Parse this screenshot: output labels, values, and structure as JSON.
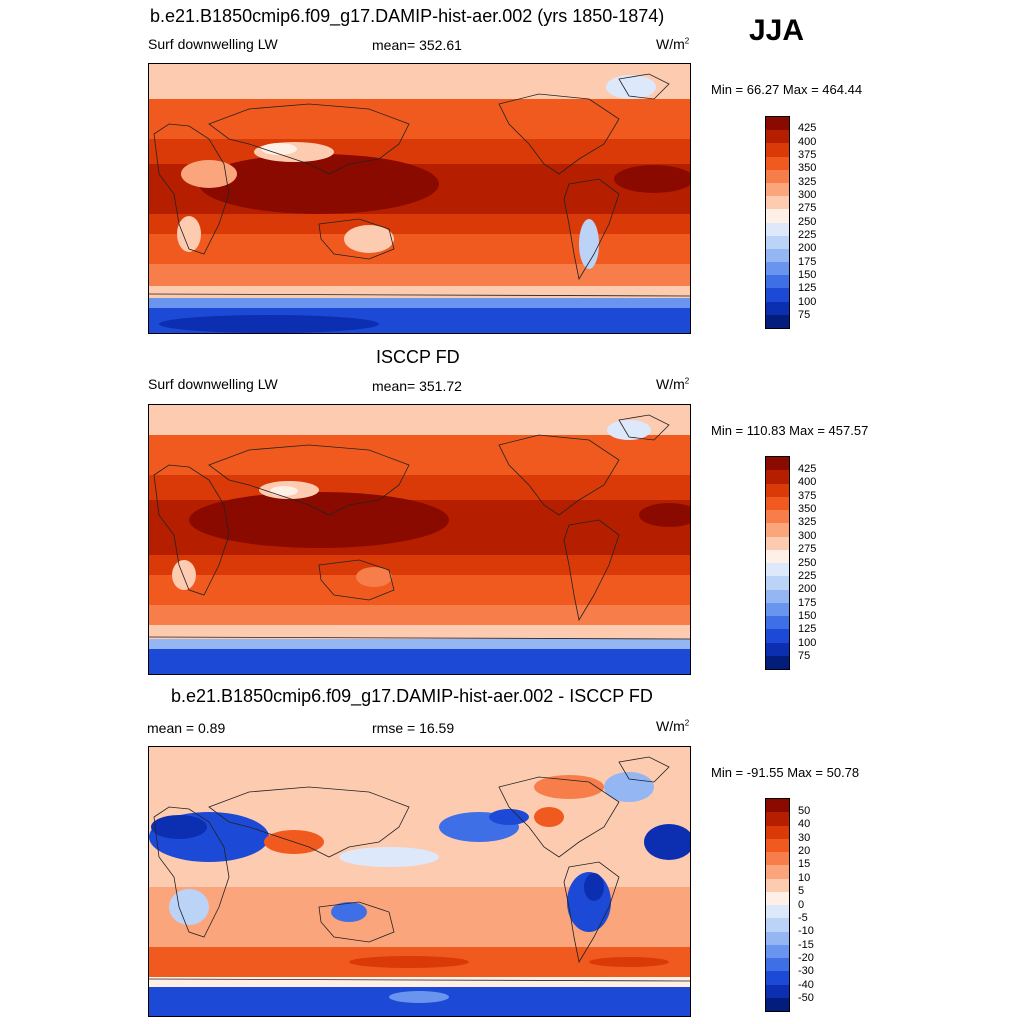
{
  "season": "JJA",
  "panels": [
    {
      "id": "model",
      "title": "b.e21.B1850cmip6.f09_g17.DAMIP-hist-aer.002 (yrs 1850-1874)",
      "left_label": "Surf downwelling LW",
      "center_label": "mean= 352.61",
      "units_base": "W/m",
      "units_exp": "2",
      "minmax": "Min =  66.27 Max = 464.44",
      "colorbar_labels": [
        "425",
        "400",
        "375",
        "350",
        "325",
        "300",
        "275",
        "250",
        "225",
        "200",
        "175",
        "150",
        "125",
        "100",
        "75"
      ]
    },
    {
      "id": "obs",
      "title": "ISCCP FD",
      "left_label": "Surf downwelling LW",
      "center_label": "mean= 351.72",
      "units_base": "W/m",
      "units_exp": "2",
      "minmax": "Min = 110.83 Max = 457.57",
      "colorbar_labels": [
        "425",
        "400",
        "375",
        "350",
        "325",
        "300",
        "275",
        "250",
        "225",
        "200",
        "175",
        "150",
        "125",
        "100",
        "75"
      ]
    },
    {
      "id": "diff",
      "title": "b.e21.B1850cmip6.f09_g17.DAMIP-hist-aer.002 - ISCCP FD",
      "left_label": "mean =   0.89",
      "center_label": "rmse =  16.59",
      "units_base": "W/m",
      "units_exp": "2",
      "minmax": "Min = -91.55 Max =  50.78",
      "colorbar_labels": [
        "50",
        "40",
        "30",
        "20",
        "15",
        "10",
        "5",
        "0",
        "-5",
        "-10",
        "-15",
        "-20",
        "-30",
        "-40",
        "-50"
      ]
    }
  ],
  "colors": {
    "colorbar_top_to_bottom": [
      "#8b0a00",
      "#b51f00",
      "#d93a08",
      "#f05a1e",
      "#f77e4a",
      "#fba57c",
      "#fdcbb0",
      "#fef0e6",
      "#dde9fb",
      "#bcd3f8",
      "#94b6f3",
      "#6a95ee",
      "#3f6fe6",
      "#1c4ad6",
      "#0b2fb0",
      "#031d7d"
    ]
  }
}
